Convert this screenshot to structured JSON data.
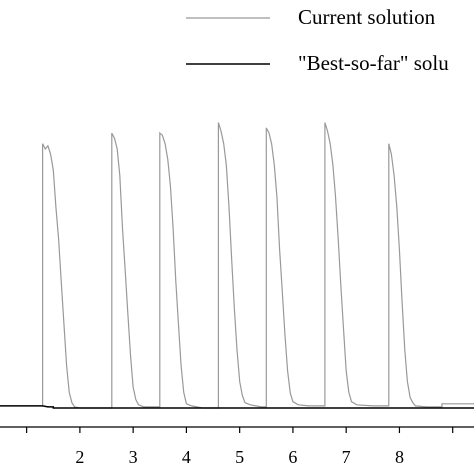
{
  "chart_data": {
    "type": "line",
    "xlim": [
      0.5,
      9.4
    ],
    "ylim": [
      0,
      280
    ],
    "x_ticks": [
      "2",
      "3",
      "4",
      "5",
      "6",
      "7",
      "8"
    ],
    "legend": {
      "placement": "top-right",
      "entries": [
        "Current solution",
        "\"Best-so-far\" solu"
      ]
    },
    "series": [
      {
        "name": "Current solution",
        "color": "#999999",
        "points": [
          [
            1.3,
            2
          ],
          [
            1.3,
            250
          ],
          [
            1.35,
            245
          ],
          [
            1.4,
            248
          ],
          [
            1.45,
            240
          ],
          [
            1.5,
            225
          ],
          [
            1.55,
            190
          ],
          [
            1.6,
            160
          ],
          [
            1.65,
            120
          ],
          [
            1.7,
            80
          ],
          [
            1.75,
            40
          ],
          [
            1.8,
            15
          ],
          [
            1.85,
            5
          ],
          [
            1.9,
            1
          ],
          [
            2.0,
            0
          ],
          [
            2.6,
            0
          ],
          [
            2.6,
            260
          ],
          [
            2.65,
            255
          ],
          [
            2.7,
            245
          ],
          [
            2.75,
            220
          ],
          [
            2.8,
            170
          ],
          [
            2.85,
            130
          ],
          [
            2.9,
            90
          ],
          [
            2.95,
            50
          ],
          [
            3.0,
            20
          ],
          [
            3.05,
            8
          ],
          [
            3.1,
            3
          ],
          [
            3.2,
            1
          ],
          [
            3.4,
            1
          ],
          [
            3.5,
            1
          ],
          [
            3.5,
            260
          ],
          [
            3.55,
            258
          ],
          [
            3.6,
            250
          ],
          [
            3.65,
            235
          ],
          [
            3.7,
            210
          ],
          [
            3.75,
            170
          ],
          [
            3.8,
            120
          ],
          [
            3.85,
            80
          ],
          [
            3.9,
            40
          ],
          [
            3.95,
            15
          ],
          [
            4.0,
            4
          ],
          [
            4.1,
            2
          ],
          [
            4.3,
            0
          ],
          [
            4.6,
            0
          ],
          [
            4.6,
            270
          ],
          [
            4.65,
            262
          ],
          [
            4.7,
            250
          ],
          [
            4.75,
            230
          ],
          [
            4.8,
            190
          ],
          [
            4.85,
            140
          ],
          [
            4.9,
            95
          ],
          [
            4.95,
            55
          ],
          [
            5.0,
            25
          ],
          [
            5.05,
            12
          ],
          [
            5.1,
            5
          ],
          [
            5.2,
            3
          ],
          [
            5.4,
            1
          ],
          [
            5.5,
            1
          ],
          [
            5.5,
            265
          ],
          [
            5.55,
            260
          ],
          [
            5.6,
            250
          ],
          [
            5.65,
            230
          ],
          [
            5.7,
            200
          ],
          [
            5.75,
            150
          ],
          [
            5.8,
            110
          ],
          [
            5.85,
            70
          ],
          [
            5.9,
            35
          ],
          [
            5.95,
            14
          ],
          [
            6.0,
            6
          ],
          [
            6.1,
            3
          ],
          [
            6.3,
            2
          ],
          [
            6.6,
            2
          ],
          [
            6.6,
            270
          ],
          [
            6.65,
            262
          ],
          [
            6.7,
            250
          ],
          [
            6.75,
            230
          ],
          [
            6.8,
            200
          ],
          [
            6.85,
            160
          ],
          [
            6.9,
            115
          ],
          [
            6.95,
            75
          ],
          [
            7.0,
            35
          ],
          [
            7.05,
            15
          ],
          [
            7.1,
            6
          ],
          [
            7.2,
            3
          ],
          [
            7.5,
            2
          ],
          [
            7.8,
            2
          ],
          [
            7.8,
            250
          ],
          [
            7.85,
            240
          ],
          [
            7.9,
            220
          ],
          [
            7.95,
            190
          ],
          [
            8.0,
            150
          ],
          [
            8.05,
            100
          ],
          [
            8.1,
            55
          ],
          [
            8.15,
            25
          ],
          [
            8.2,
            10
          ],
          [
            8.25,
            5
          ],
          [
            8.3,
            2
          ],
          [
            8.5,
            1
          ],
          [
            8.8,
            1
          ],
          [
            8.8,
            4
          ],
          [
            9.0,
            4
          ],
          [
            9.2,
            4
          ],
          [
            9.4,
            4
          ]
        ]
      },
      {
        "name": "\"Best-so-far\" solu",
        "color": "#000000",
        "points": [
          [
            0.5,
            2
          ],
          [
            1.3,
            2
          ],
          [
            1.4,
            1
          ],
          [
            1.5,
            1
          ],
          [
            1.5,
            0
          ],
          [
            9.4,
            0
          ]
        ]
      }
    ]
  }
}
